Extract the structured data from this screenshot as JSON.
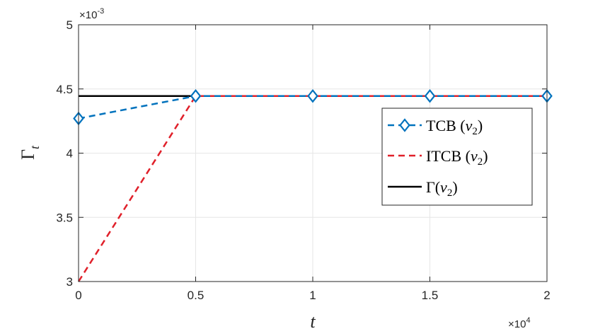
{
  "chart_data": {
    "type": "line",
    "title": "",
    "xlabel": "t",
    "ylabel": "Γ",
    "ylabel_sub": "t",
    "x_exponent_base": "×10",
    "x_exponent_power": "4",
    "y_exponent_base": "×10",
    "y_exponent_power": "-3",
    "x": [
      0,
      0.5,
      1,
      1.5,
      2
    ],
    "xlim": [
      0,
      2
    ],
    "ylim": [
      3,
      5
    ],
    "x_ticks": [
      0,
      0.5,
      1,
      1.5,
      2
    ],
    "x_tick_labels": [
      "0",
      "0.5",
      "1",
      "1.5",
      "2"
    ],
    "y_ticks": [
      3,
      3.5,
      4,
      4.5,
      5
    ],
    "y_tick_labels": [
      "3",
      "3.5",
      "4",
      "4.5",
      "5"
    ],
    "grid": true,
    "legend_position": "right",
    "series": [
      {
        "name": "TCB (ν₂)",
        "legend_main": "TCB (",
        "legend_var": "ν",
        "legend_sub": "2",
        "legend_close": ")",
        "values": [
          4.27,
          4.445,
          4.445,
          4.445,
          4.445
        ],
        "color": "#0072BD",
        "style": "dashed",
        "marker": "diamond"
      },
      {
        "name": "ITCB (ν₂)",
        "legend_main": "ITCB (",
        "legend_var": "ν",
        "legend_sub": "2",
        "legend_close": ")",
        "values": [
          3.0,
          4.445,
          4.445,
          4.445,
          4.445
        ],
        "color": "#E0202A",
        "style": "dashed",
        "marker": "none"
      },
      {
        "name": "Γ(ν₂)",
        "legend_main": "Γ(",
        "legend_var": "ν",
        "legend_sub": "2",
        "legend_close": ")",
        "values": [
          4.445,
          4.445,
          4.445,
          4.445,
          4.445
        ],
        "color": "#000000",
        "style": "solid",
        "marker": "none"
      }
    ]
  }
}
